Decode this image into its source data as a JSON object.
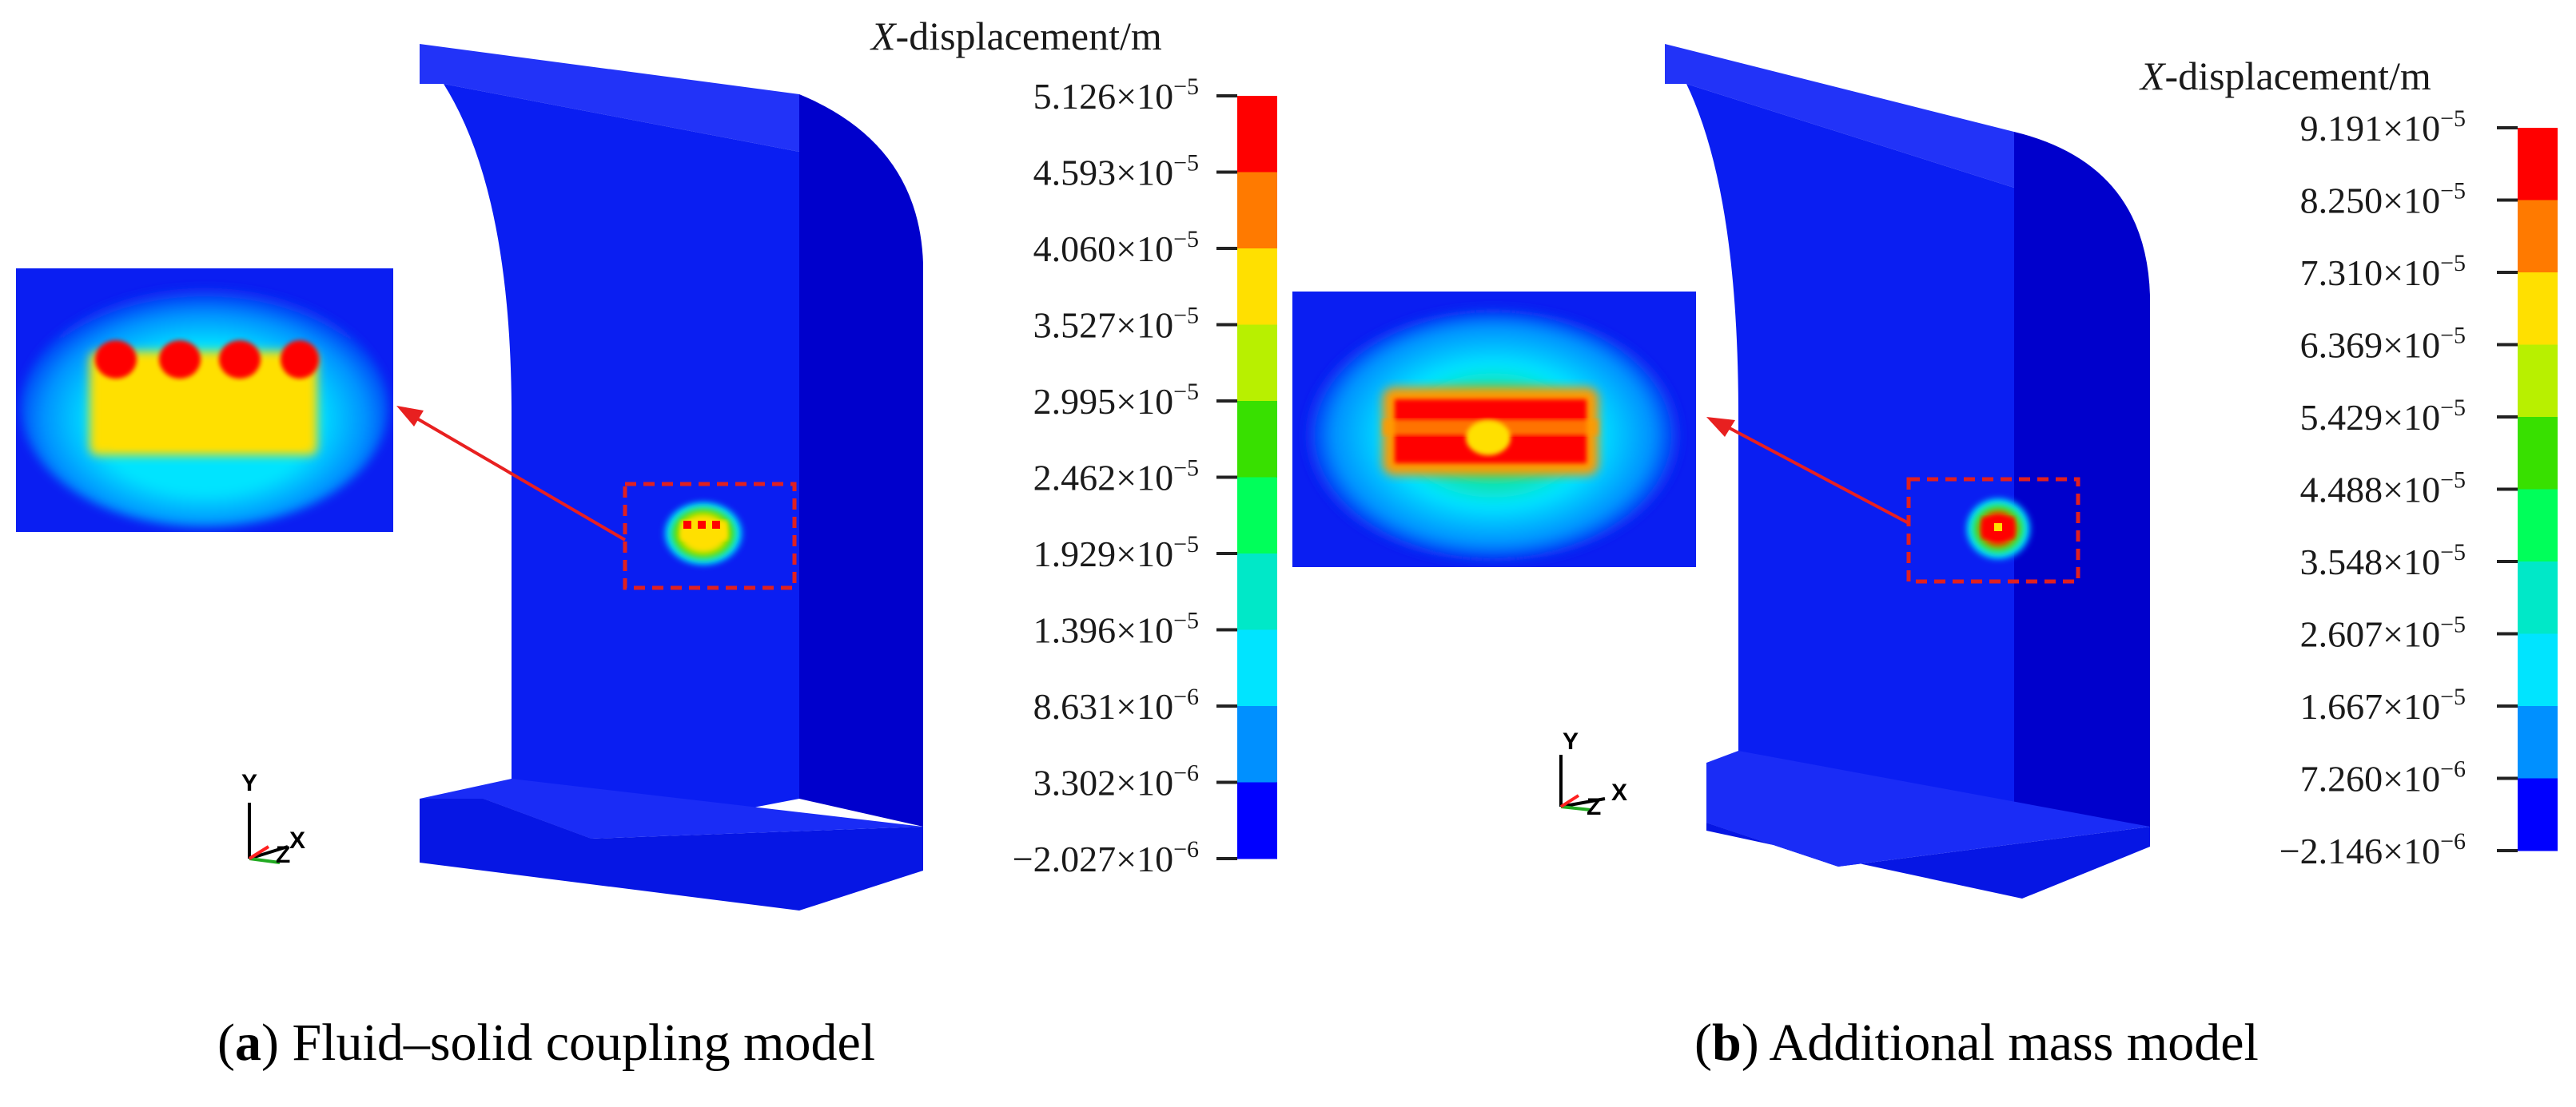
{
  "panels": [
    {
      "id": "a",
      "legend_title_var": "X",
      "legend_title_rest": "-displacement/m",
      "ticks": [
        "5.126×10",
        "4.593×10",
        "4.060×10",
        "3.527×10",
        "2.995×10",
        "2.462×10",
        "1.929×10",
        "1.396×10",
        "8.631×10",
        "3.302×10",
        "−2.027×10"
      ],
      "exps": [
        "−5",
        "−5",
        "−5",
        "−5",
        "−5",
        "−5",
        "−5",
        "−5",
        "−6",
        "−6",
        "−6"
      ],
      "axis": {
        "y": "Y",
        "x": "X",
        "z": "Z"
      },
      "caption_letter": "a",
      "caption_text": "Fluid–solid coupling model"
    },
    {
      "id": "b",
      "legend_title_var": "X",
      "legend_title_rest": "-displacement/m",
      "ticks": [
        "9.191×10",
        "8.250×10",
        "7.310×10",
        "6.369×10",
        "5.429×10",
        "4.488×10",
        "3.548×10",
        "2.607×10",
        "1.667×10",
        "7.260×10",
        "−2.146×10"
      ],
      "exps": [
        "−5",
        "−5",
        "−5",
        "−5",
        "−5",
        "−5",
        "−5",
        "−5",
        "−5",
        "−6",
        "−6"
      ],
      "axis": {
        "y": "Y",
        "x": "X",
        "z": "Z"
      },
      "caption_letter": "b",
      "caption_text": "Additional mass model"
    }
  ],
  "colors": {
    "scale": [
      "#ff0000",
      "#ff7a00",
      "#ffe000",
      "#b8f000",
      "#38e000",
      "#00ff5a",
      "#00e8c8",
      "#00e4ff",
      "#0090ff",
      "#0000ff"
    ],
    "model_face": "#0a1ef2",
    "model_side": "#0000d0",
    "model_top": "#2030f8",
    "arrow": "#e82020"
  }
}
